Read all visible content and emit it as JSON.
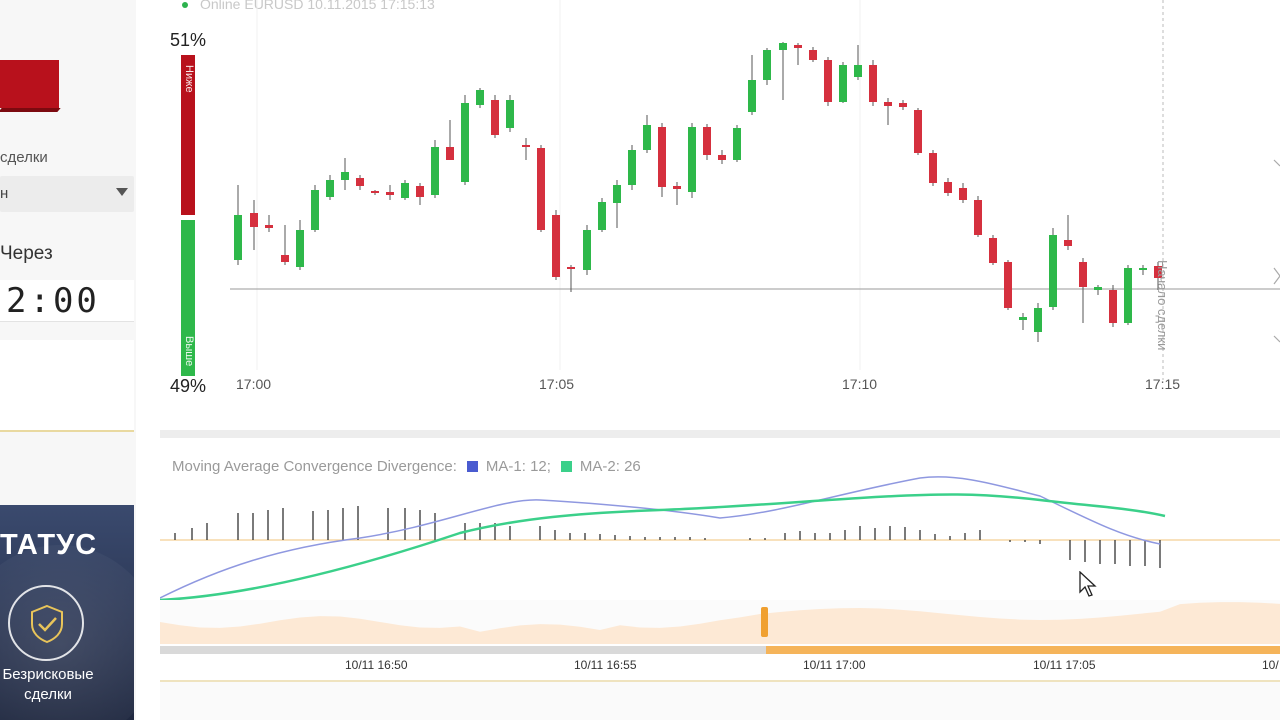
{
  "left_panel": {
    "deal_label": "сделки",
    "dropdown_value": "н",
    "through_label": "Через",
    "timer": "2:00",
    "status_title": "ТАТУС",
    "status_subtitle": "Безрисковые сделки"
  },
  "chart": {
    "status_line": "Online EURUSD 10.11.2015 17:15:13",
    "sentiment_down_pct": "51%",
    "sentiment_up_pct": "49%",
    "sentiment_down_label": "Ниже",
    "sentiment_up_label": "Выше",
    "x_ticks": [
      "17:00",
      "17:05",
      "17:10",
      "17:15"
    ],
    "deal_start_label": "Начало сделки",
    "colors": {
      "up": "#2eb84a",
      "down": "#d5303e"
    }
  },
  "macd": {
    "title": "Moving Average Convergence Divergence:",
    "ma1_label": "MA-1: 12;",
    "ma2_label": "MA-2: 26",
    "colors": {
      "ma1": "#4a5bd0",
      "ma2": "#3bd08a"
    }
  },
  "navigator": {
    "x_ticks": [
      "10/11 16:50",
      "10/11 16:55",
      "10/11 17:00",
      "10/11 17:05",
      "10/"
    ],
    "colors": {
      "fill": "#fde9d5",
      "handle": "#f0a030"
    }
  }
}
